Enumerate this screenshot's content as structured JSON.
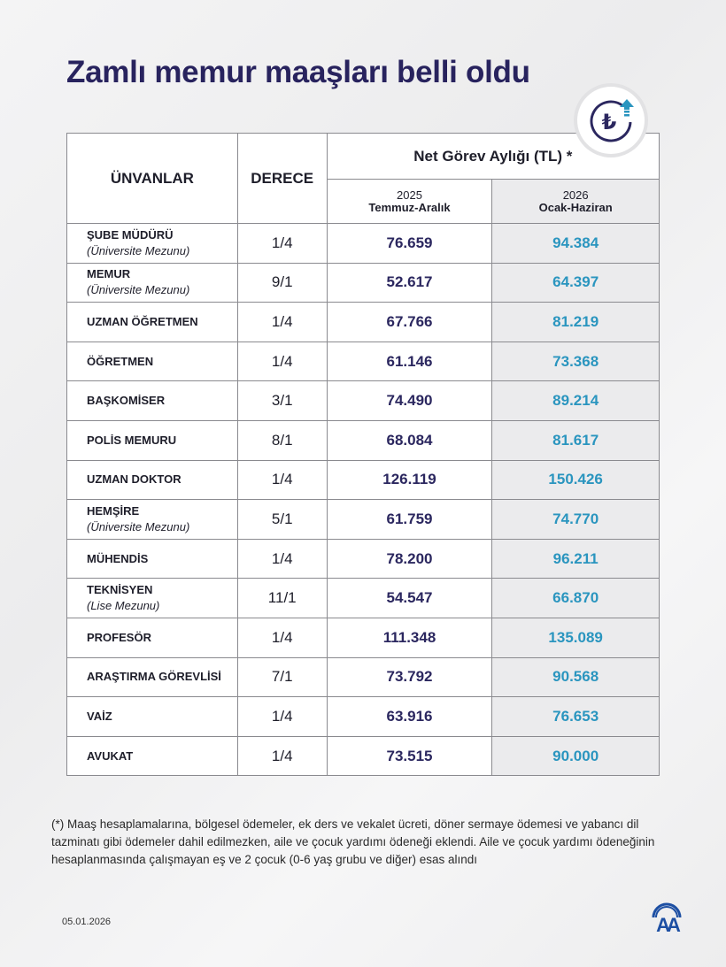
{
  "title": "Zamlı memur maaşları belli oldu",
  "badge_icon": "turkish-lira-up-arrow-icon",
  "table": {
    "col_titles": "ÜNVANLAR",
    "col_degree": "DERECE",
    "col_group": "Net Görev Aylığı (TL) *",
    "period1": {
      "year": "2025",
      "months": "Temmuz-Aralık"
    },
    "period2": {
      "year": "2026",
      "months": "Ocak-Haziran"
    },
    "rows": [
      {
        "title": "ŞUBE MÜDÜRÜ",
        "note": "(Üniversite Mezunu)",
        "degree": "1/4",
        "v2025": "76.659",
        "v2026": "94.384"
      },
      {
        "title": "MEMUR",
        "note": "(Üniversite Mezunu)",
        "degree": "9/1",
        "v2025": "52.617",
        "v2026": "64.397"
      },
      {
        "title": "UZMAN ÖĞRETMEN",
        "note": "",
        "degree": "1/4",
        "v2025": "67.766",
        "v2026": "81.219"
      },
      {
        "title": "ÖĞRETMEN",
        "note": "",
        "degree": "1/4",
        "v2025": "61.146",
        "v2026": "73.368"
      },
      {
        "title": "BAŞKOMİSER",
        "note": "",
        "degree": "3/1",
        "v2025": "74.490",
        "v2026": "89.214"
      },
      {
        "title": "POLİS MEMURU",
        "note": "",
        "degree": "8/1",
        "v2025": "68.084",
        "v2026": "81.617"
      },
      {
        "title": "UZMAN DOKTOR",
        "note": "",
        "degree": "1/4",
        "v2025": "126.119",
        "v2026": "150.426"
      },
      {
        "title": "HEMŞİRE",
        "note": "(Üniversite Mezunu)",
        "degree": "5/1",
        "v2025": "61.759",
        "v2026": "74.770"
      },
      {
        "title": "MÜHENDİS",
        "note": "",
        "degree": "1/4",
        "v2025": "78.200",
        "v2026": "96.211"
      },
      {
        "title": "TEKNİSYEN",
        "note": "(Lise Mezunu)",
        "degree": "11/1",
        "v2025": "54.547",
        "v2026": "66.870"
      },
      {
        "title": "PROFESÖR",
        "note": "",
        "degree": "1/4",
        "v2025": "111.348",
        "v2026": "135.089"
      },
      {
        "title": "ARAŞTIRMA GÖREVLİSİ",
        "note": "",
        "degree": "7/1",
        "v2025": "73.792",
        "v2026": "90.568"
      },
      {
        "title": "VAİZ",
        "note": "",
        "degree": "1/4",
        "v2025": "63.916",
        "v2026": "76.653"
      },
      {
        "title": "AVUKAT",
        "note": "",
        "degree": "1/4",
        "v2025": "73.515",
        "v2026": "90.000"
      }
    ]
  },
  "footnote": "(*) Maaş hesaplamalarına, bölgesel ödemeler, ek ders ve vekalet ücreti, döner sermaye ödemesi ve yabancı dil tazminatı gibi ödemeler dahil edilmezken, aile ve çocuk yardımı ödeneği eklendi. Aile ve çocuk yardımı ödeneğinin hesaplanmasında çalışmayan eş ve 2 çocuk (0-6 yaş grubu ve diğer) esas alındı",
  "date": "05.01.2026",
  "logo": "AA",
  "colors": {
    "title": "#28235e",
    "value2025": "#2b275f",
    "value2026": "#2a95bf",
    "logo": "#1d4fa3"
  }
}
